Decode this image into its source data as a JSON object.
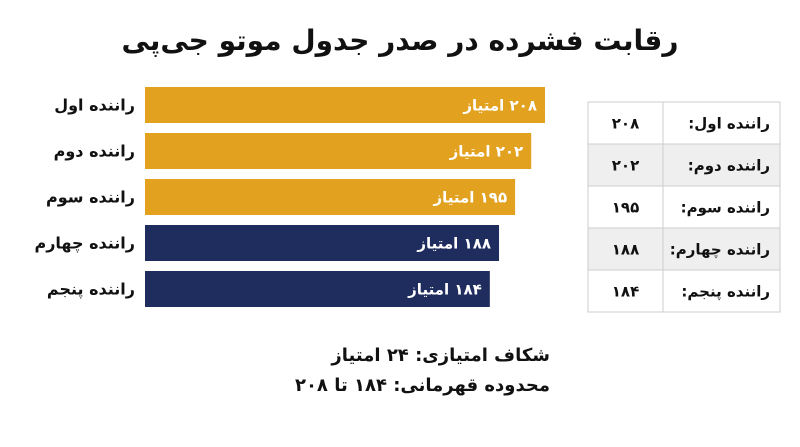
{
  "chart_data": {
    "type": "hbar",
    "title": "رقابت فشرده در صدر جدول موتو جی‌پی",
    "categories": [
      "راننده اول",
      "راننده دوم",
      "راننده سوم",
      "راننده چهارم",
      "راننده پنجم"
    ],
    "values": [
      208,
      202,
      195,
      188,
      184
    ],
    "value_labels": [
      "۲۰۸ امتیاز",
      "۲۰۲ امتیاز",
      "۱۹۵ امتیاز",
      "۱۸۸ امتیاز",
      "۱۸۴ امتیاز"
    ],
    "colors": [
      "#e2a11f",
      "#e2a11f",
      "#e2a11f",
      "#1e2d5e",
      "#1e2d5e"
    ],
    "xlim": [
      34,
      208
    ],
    "table": {
      "rows": [
        [
          "راننده اول:",
          "۲۰۸"
        ],
        [
          "راننده دوم:",
          "۲۰۲"
        ],
        [
          "راننده سوم:",
          "۱۹۵"
        ],
        [
          "راننده چهارم:",
          "۱۸۸"
        ],
        [
          "راننده پنجم:",
          "۱۸۴"
        ]
      ]
    },
    "notes": [
      "شکاف امتیازی: ۲۴ امتیاز",
      "محدوده قهرمانی: ۱۸۴ تا ۲۰۸"
    ]
  }
}
